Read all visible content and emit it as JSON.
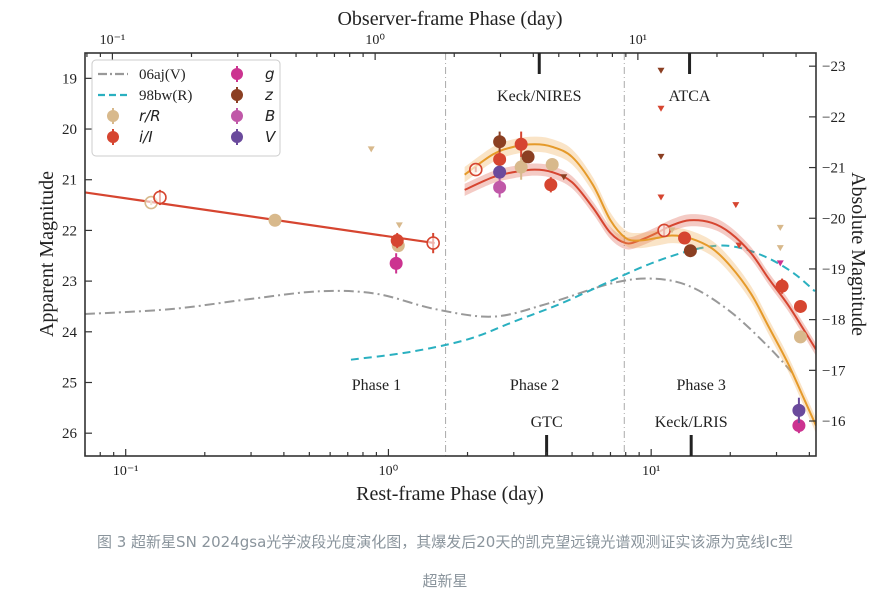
{
  "caption": {
    "line1": "图 3 超新星SN 2024gsa光学波段光度演化图，其爆发后20天的凯克望远镜光谱观测证实该源为宽线Ic型",
    "line2": "超新星"
  },
  "chart_data": {
    "type": "scatter",
    "title": "",
    "xlabel": "Rest-frame Phase (day)",
    "xlabel_top": "Observer-frame Phase (day)",
    "ylabel": "Apparent Magnitude",
    "ylabel_right": "Absolute Magnitude",
    "xscale": "log",
    "xlim": [
      0.07,
      42.4
    ],
    "ylim": [
      26.45,
      18.5
    ],
    "ylim_right": [
      -16.0,
      -23.0
    ],
    "abs_offset": -41.76,
    "x_ticks": [
      {
        "v": 0.1,
        "label": "10⁻¹"
      },
      {
        "v": 1,
        "label": "10⁰"
      },
      {
        "v": 10,
        "label": "10¹"
      }
    ],
    "x_top_ticks": [
      {
        "v": 0.1,
        "label": "10⁻¹"
      },
      {
        "v": 1,
        "label": "10⁰"
      },
      {
        "v": 10,
        "label": "10¹"
      }
    ],
    "top_to_rest_factor": 0.89,
    "y_ticks": [
      19,
      20,
      21,
      22,
      23,
      24,
      25,
      26
    ],
    "y_right_ticks": [
      -23,
      -22,
      -21,
      -20,
      -19,
      -18,
      -17,
      -16
    ],
    "grid": false,
    "legend_position": "top-left",
    "legend": [
      {
        "label": "06aj(V)",
        "kind": "dashdot",
        "color": "#999999"
      },
      {
        "label": "98bw(R)",
        "kind": "dashed",
        "color": "#2ab0c0"
      },
      {
        "label": "r/R",
        "kind": "marker",
        "color": "#d8b98c"
      },
      {
        "label": "i/I",
        "kind": "marker",
        "color": "#d64530"
      },
      {
        "label": "g",
        "kind": "marker",
        "color": "#cc3390"
      },
      {
        "label": "z",
        "kind": "marker",
        "color": "#8b3f22"
      },
      {
        "label": "B",
        "kind": "marker",
        "color": "#c058a8"
      },
      {
        "label": "V",
        "kind": "marker",
        "color": "#6a4a9c"
      }
    ],
    "phase_boundaries": [
      1.65,
      7.9
    ],
    "phase_labels": [
      {
        "label": "Phase 1",
        "x": 0.9,
        "y": 25.15
      },
      {
        "label": "Phase 2",
        "x": 3.6,
        "y": 25.15
      },
      {
        "label": "Phase 3",
        "x": 15.5,
        "y": 25.15
      }
    ],
    "observation_markers_top": [
      {
        "label": "Keck/NIRES",
        "x": 3.75
      },
      {
        "label": "ATCA",
        "x": 14.0
      }
    ],
    "observation_markers_bottom": [
      {
        "label": "GTC",
        "x": 4.0
      },
      {
        "label": "Keck/LRIS",
        "x": 14.2
      }
    ],
    "series": [
      {
        "name": "06aj(V)",
        "type": "line",
        "style": "dashdot",
        "color": "#999999",
        "x": [
          0.07,
          0.15,
          0.3,
          0.55,
          0.9,
          1.5,
          2.5,
          4,
          7,
          10,
          14,
          20,
          28,
          35
        ],
        "y": [
          23.65,
          23.55,
          23.35,
          23.2,
          23.25,
          23.55,
          23.7,
          23.45,
          23.05,
          22.95,
          23.1,
          23.6,
          24.3,
          24.85
        ]
      },
      {
        "name": "98bw(R)",
        "type": "line",
        "style": "dashed",
        "color": "#2ab0c0",
        "x": [
          0.72,
          1.2,
          2,
          3,
          4.5,
          7,
          10,
          14,
          18,
          22,
          28,
          35,
          42
        ],
        "y": [
          24.55,
          24.4,
          24.15,
          23.8,
          23.45,
          23.0,
          22.65,
          22.4,
          22.3,
          22.35,
          22.55,
          22.85,
          23.2
        ]
      },
      {
        "name": "i/I phase1 fit",
        "type": "line",
        "color": "#d64530",
        "x": [
          0.07,
          1.5
        ],
        "y": [
          21.25,
          22.25
        ]
      },
      {
        "name": "i/I fit",
        "type": "band",
        "color": "#d64530",
        "band_color": "rgba(214,69,48,0.28)",
        "x": [
          1.95,
          2.5,
          3,
          3.6,
          4.2,
          5,
          6,
          7,
          8,
          9,
          10.5,
          12,
          14,
          17,
          20,
          24,
          28,
          33,
          38,
          42.4
        ],
        "y": [
          21.2,
          20.95,
          20.85,
          20.8,
          20.85,
          21.05,
          21.55,
          22.05,
          22.25,
          22.2,
          22.05,
          21.9,
          21.8,
          21.85,
          22.05,
          22.45,
          22.95,
          23.45,
          23.95,
          24.35
        ],
        "err": 0.12
      },
      {
        "name": "r/R fit",
        "type": "band",
        "color": "#e59a2a",
        "band_color": "rgba(238,170,80,0.32)",
        "x": [
          1.95,
          2.5,
          3,
          3.6,
          4.2,
          5,
          6,
          7,
          8,
          9,
          10.5,
          12,
          14,
          17,
          20,
          24,
          28,
          33,
          38,
          42.4
        ],
        "y": [
          20.9,
          20.5,
          20.35,
          20.3,
          20.35,
          20.55,
          21.1,
          21.8,
          22.15,
          22.2,
          22.15,
          22.1,
          22.15,
          22.35,
          22.7,
          23.25,
          23.9,
          24.6,
          25.3,
          25.85
        ],
        "err": 0.15
      },
      {
        "name": "r/R",
        "type": "points",
        "color": "#d8b98c",
        "points": [
          {
            "x": 0.125,
            "y": 21.45,
            "open": true,
            "err": 0.05
          },
          {
            "x": 0.37,
            "y": 21.8
          },
          {
            "x": 1.09,
            "y": 22.3
          },
          {
            "x": 3.2,
            "y": 20.75,
            "err": 0.25
          },
          {
            "x": 4.2,
            "y": 20.7
          },
          {
            "x": 37,
            "y": 24.1
          }
        ]
      },
      {
        "name": "i/I",
        "type": "points",
        "color": "#d64530",
        "points": [
          {
            "x": 0.135,
            "y": 21.35,
            "open": true,
            "err": 0.15
          },
          {
            "x": 1.08,
            "y": 22.2,
            "err": 0.15
          },
          {
            "x": 1.48,
            "y": 22.25,
            "open": true,
            "err": 0.2
          },
          {
            "x": 2.15,
            "y": 20.8,
            "open": true,
            "err": 0.05
          },
          {
            "x": 2.65,
            "y": 20.6,
            "err": 0.15
          },
          {
            "x": 3.2,
            "y": 20.3,
            "err": 0.25
          },
          {
            "x": 4.15,
            "y": 21.1,
            "err": 0.15
          },
          {
            "x": 11.2,
            "y": 22.0,
            "open": true,
            "err": 0.1
          },
          {
            "x": 13.4,
            "y": 22.15
          },
          {
            "x": 31.5,
            "y": 23.1,
            "err": 0.15
          },
          {
            "x": 37,
            "y": 23.5,
            "err": 0.1
          }
        ]
      },
      {
        "name": "g",
        "type": "points",
        "color": "#cc3390",
        "points": [
          {
            "x": 1.07,
            "y": 22.65,
            "err": 0.2
          },
          {
            "x": 36.5,
            "y": 25.85,
            "err": 0.15
          }
        ]
      },
      {
        "name": "z",
        "type": "points",
        "color": "#8b3f22",
        "points": [
          {
            "x": 2.65,
            "y": 20.25,
            "err": 0.2
          },
          {
            "x": 3.4,
            "y": 20.55
          },
          {
            "x": 14.1,
            "y": 22.4
          }
        ]
      },
      {
        "name": "B",
        "type": "points",
        "color": "#c058a8",
        "points": [
          {
            "x": 2.65,
            "y": 21.15,
            "err": 0.2
          }
        ]
      },
      {
        "name": "V",
        "type": "points",
        "color": "#6a4a9c",
        "points": [
          {
            "x": 2.65,
            "y": 20.85
          },
          {
            "x": 36.5,
            "y": 25.55,
            "err": 0.25
          }
        ]
      },
      {
        "name": "upper limits",
        "type": "limits",
        "points": [
          {
            "x": 0.86,
            "y": 20.4,
            "color": "#d8b98c"
          },
          {
            "x": 1.1,
            "y": 21.9,
            "color": "#d8b98c"
          },
          {
            "x": 4.65,
            "y": 20.95,
            "color": "#8b3f22"
          },
          {
            "x": 10.9,
            "y": 18.85,
            "color": "#8b3f22"
          },
          {
            "x": 10.9,
            "y": 19.6,
            "color": "#d64530"
          },
          {
            "x": 10.9,
            "y": 20.55,
            "color": "#8b3f22"
          },
          {
            "x": 10.9,
            "y": 21.35,
            "color": "#d64530"
          },
          {
            "x": 12.0,
            "y": 22.0,
            "color": "#d8b98c"
          },
          {
            "x": 21.0,
            "y": 21.5,
            "color": "#d64530"
          },
          {
            "x": 21.6,
            "y": 22.3,
            "color": "#d64530"
          },
          {
            "x": 31.0,
            "y": 21.95,
            "color": "#d8b98c"
          },
          {
            "x": 31.0,
            "y": 22.35,
            "color": "#d8b98c"
          },
          {
            "x": 31.0,
            "y": 22.65,
            "color": "#cc3390"
          }
        ]
      }
    ]
  }
}
